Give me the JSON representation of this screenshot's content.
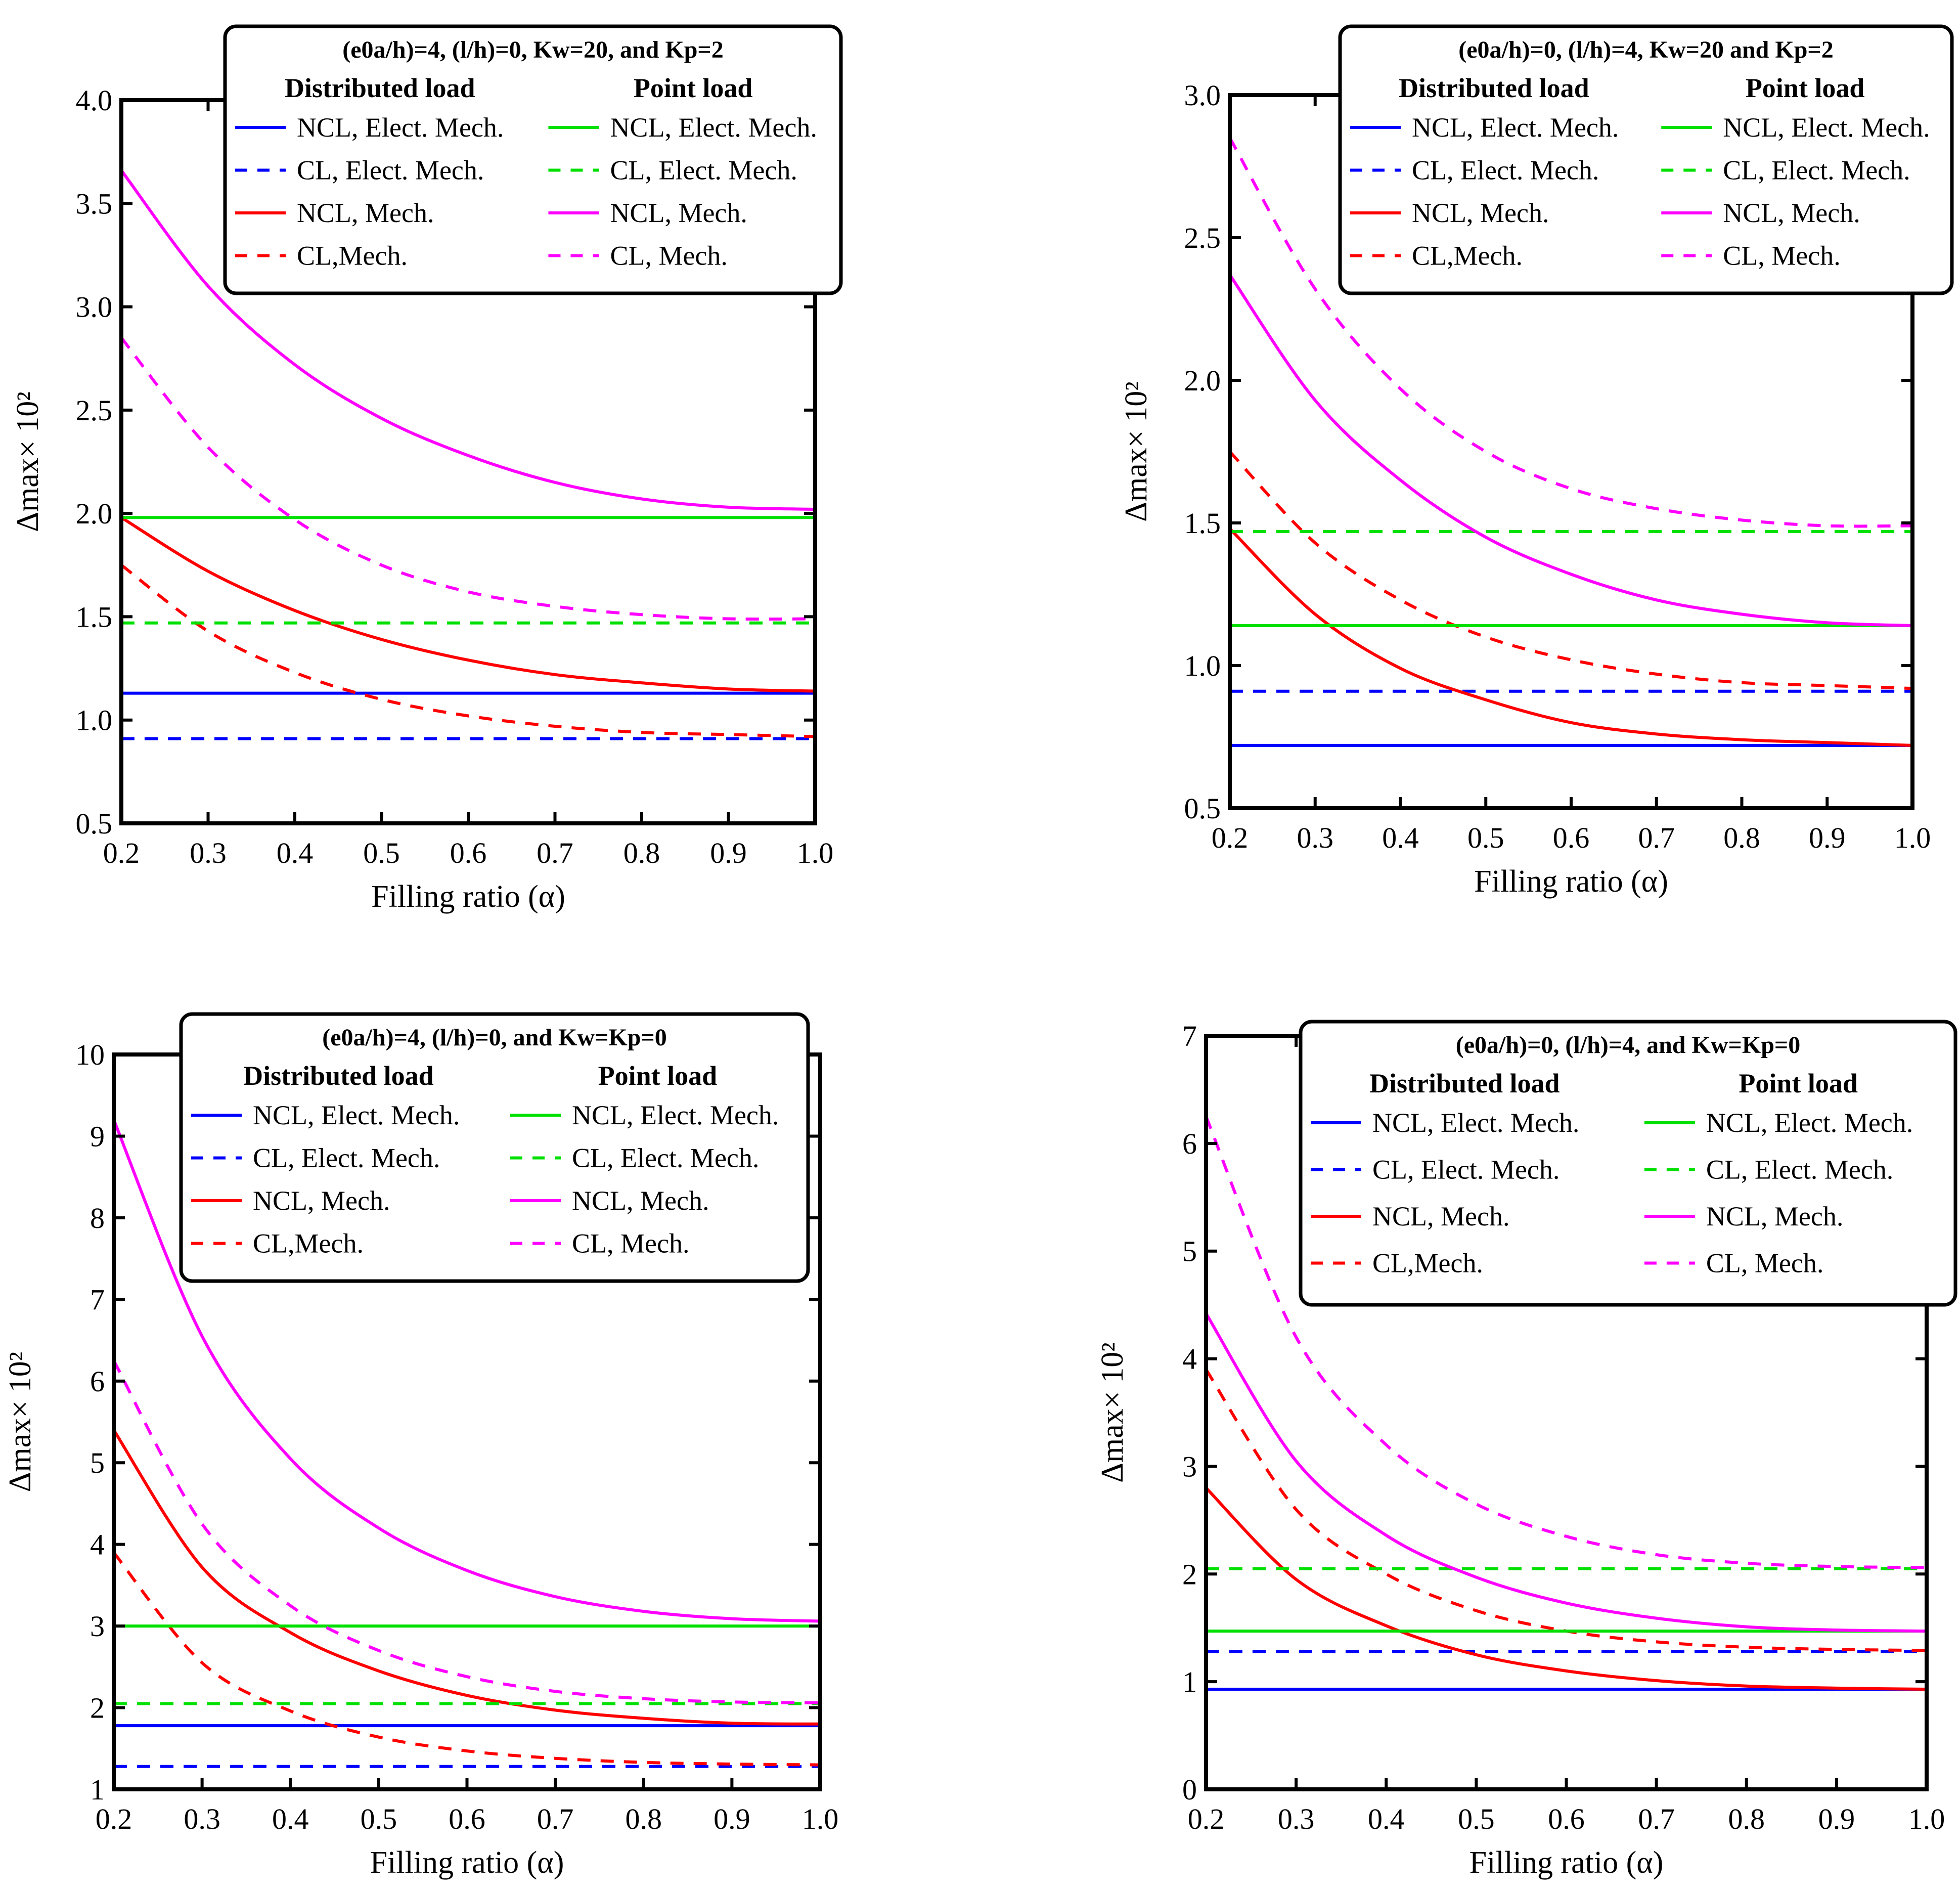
{
  "chart_data": [
    {
      "type": "line",
      "panel": "top-left",
      "legend_title": "(e0a/h)=4, (l/h)=0, Kw=20, and Kp=2",
      "xlabel": "Filling ratio (α)",
      "ylabel": "Δmax× 10²",
      "xlim": [
        0.2,
        1.0
      ],
      "ylim": [
        0.5,
        4.0
      ],
      "xticks": [
        "0.2",
        "0.3",
        "0.4",
        "0.5",
        "0.6",
        "0.7",
        "0.8",
        "0.9",
        "1.0"
      ],
      "yticks": [
        "0.5",
        "1.0",
        "1.5",
        "2.0",
        "2.5",
        "3.0",
        "3.5",
        "4.0"
      ],
      "legend_headers": [
        "Distributed load",
        "Point load"
      ],
      "x": [
        0.2,
        0.3,
        0.4,
        0.5,
        0.6,
        0.7,
        0.8,
        0.9,
        1.0
      ],
      "series": [
        {
          "name": "NCL, Elect. Mech.",
          "group": "Distributed load",
          "color": "#0000ff",
          "dash": "solid",
          "values": [
            1.13,
            1.13,
            1.13,
            1.13,
            1.13,
            1.13,
            1.13,
            1.13,
            1.13
          ]
        },
        {
          "name": "CL, Elect. Mech.",
          "group": "Distributed load",
          "color": "#0000ff",
          "dash": "dashed",
          "values": [
            0.91,
            0.91,
            0.91,
            0.91,
            0.91,
            0.91,
            0.91,
            0.91,
            0.91
          ]
        },
        {
          "name": "NCL, Mech.",
          "group": "Distributed load",
          "color": "#ff0000",
          "dash": "solid",
          "values": [
            1.98,
            1.72,
            1.53,
            1.39,
            1.29,
            1.22,
            1.18,
            1.15,
            1.14
          ]
        },
        {
          "name": "CL,Mech.",
          "group": "Distributed load",
          "color": "#ff0000",
          "dash": "dashed",
          "values": [
            1.75,
            1.43,
            1.23,
            1.1,
            1.02,
            0.97,
            0.94,
            0.93,
            0.92
          ]
        },
        {
          "name": "NCL, Elect. Mech.",
          "group": "Point load",
          "color": "#00e000",
          "dash": "solid",
          "values": [
            1.98,
            1.98,
            1.98,
            1.98,
            1.98,
            1.98,
            1.98,
            1.98,
            1.98
          ]
        },
        {
          "name": "CL, Elect. Mech.",
          "group": "Point load",
          "color": "#00e000",
          "dash": "dashed",
          "values": [
            1.47,
            1.47,
            1.47,
            1.47,
            1.47,
            1.47,
            1.47,
            1.47,
            1.47
          ]
        },
        {
          "name": "NCL, Mech.",
          "group": "Point load",
          "color": "#ff00ff",
          "dash": "solid",
          "values": [
            3.66,
            3.1,
            2.72,
            2.46,
            2.28,
            2.15,
            2.07,
            2.03,
            2.02
          ]
        },
        {
          "name": "CL, Mech.",
          "group": "Point load",
          "color": "#ff00ff",
          "dash": "dashed",
          "values": [
            2.85,
            2.32,
            1.97,
            1.75,
            1.62,
            1.55,
            1.51,
            1.49,
            1.49
          ]
        }
      ]
    },
    {
      "type": "line",
      "panel": "top-right",
      "legend_title": "(e0a/h)=0, (l/h)=4, Kw=20 and Kp=2",
      "xlabel": "Filling ratio (α)",
      "ylabel": "Δmax× 10²",
      "xlim": [
        0.2,
        1.0
      ],
      "ylim": [
        0.5,
        3.0
      ],
      "xticks": [
        "0.2",
        "0.3",
        "0.4",
        "0.5",
        "0.6",
        "0.7",
        "0.8",
        "0.9",
        "1.0"
      ],
      "yticks": [
        "0.5",
        "1.0",
        "1.5",
        "2.0",
        "2.5",
        "3.0"
      ],
      "legend_headers": [
        "Distributed load",
        "Point load"
      ],
      "x": [
        0.2,
        0.3,
        0.4,
        0.5,
        0.6,
        0.7,
        0.8,
        0.9,
        1.0
      ],
      "series": [
        {
          "name": "NCL, Elect. Mech.",
          "group": "Distributed load",
          "color": "#0000ff",
          "dash": "solid",
          "values": [
            0.72,
            0.72,
            0.72,
            0.72,
            0.72,
            0.72,
            0.72,
            0.72,
            0.72
          ]
        },
        {
          "name": "CL, Elect. Mech.",
          "group": "Distributed load",
          "color": "#0000ff",
          "dash": "dashed",
          "values": [
            0.91,
            0.91,
            0.91,
            0.91,
            0.91,
            0.91,
            0.91,
            0.91,
            0.91
          ]
        },
        {
          "name": "NCL, Mech.",
          "group": "Distributed load",
          "color": "#ff0000",
          "dash": "solid",
          "values": [
            1.48,
            1.18,
            0.99,
            0.88,
            0.8,
            0.76,
            0.74,
            0.73,
            0.72
          ]
        },
        {
          "name": "CL,Mech.",
          "group": "Distributed load",
          "color": "#ff0000",
          "dash": "dashed",
          "values": [
            1.75,
            1.43,
            1.23,
            1.1,
            1.02,
            0.97,
            0.94,
            0.93,
            0.92
          ]
        },
        {
          "name": "NCL, Elect. Mech.",
          "group": "Point load",
          "color": "#00e000",
          "dash": "solid",
          "values": [
            1.14,
            1.14,
            1.14,
            1.14,
            1.14,
            1.14,
            1.14,
            1.14,
            1.14
          ]
        },
        {
          "name": "CL, Elect. Mech.",
          "group": "Point load",
          "color": "#00e000",
          "dash": "dashed",
          "values": [
            1.47,
            1.47,
            1.47,
            1.47,
            1.47,
            1.47,
            1.47,
            1.47,
            1.47
          ]
        },
        {
          "name": "NCL, Mech.",
          "group": "Point load",
          "color": "#ff00ff",
          "dash": "solid",
          "values": [
            2.37,
            1.93,
            1.65,
            1.45,
            1.32,
            1.23,
            1.18,
            1.15,
            1.14
          ]
        },
        {
          "name": "CL, Mech.",
          "group": "Point load",
          "color": "#ff00ff",
          "dash": "dashed",
          "values": [
            2.85,
            2.32,
            1.97,
            1.75,
            1.62,
            1.55,
            1.51,
            1.49,
            1.49
          ]
        }
      ]
    },
    {
      "type": "line",
      "panel": "bottom-left",
      "legend_title": "(e0a/h)=4,  (l/h)=0, and Kw=Kp=0",
      "xlabel": "Filling ratio (α)",
      "ylabel": "Δmax× 10²",
      "xlim": [
        0.2,
        1.0
      ],
      "ylim": [
        1,
        10
      ],
      "xticks": [
        "0.2",
        "0.3",
        "0.4",
        "0.5",
        "0.6",
        "0.7",
        "0.8",
        "0.9",
        "1.0"
      ],
      "yticks": [
        "1",
        "2",
        "3",
        "4",
        "5",
        "6",
        "7",
        "8",
        "9",
        "10"
      ],
      "legend_headers": [
        "Distributed load",
        "Point load"
      ],
      "x": [
        0.2,
        0.3,
        0.4,
        0.5,
        0.6,
        0.7,
        0.8,
        0.9,
        1.0
      ],
      "series": [
        {
          "name": "NCL, Elect. Mech.",
          "group": "Distributed load",
          "color": "#0000ff",
          "dash": "solid",
          "values": [
            1.78,
            1.78,
            1.78,
            1.78,
            1.78,
            1.78,
            1.78,
            1.78,
            1.78
          ]
        },
        {
          "name": "CL, Elect. Mech.",
          "group": "Distributed load",
          "color": "#0000ff",
          "dash": "dashed",
          "values": [
            1.28,
            1.28,
            1.28,
            1.28,
            1.28,
            1.28,
            1.28,
            1.28,
            1.28
          ]
        },
        {
          "name": "NCL, Mech.",
          "group": "Distributed load",
          "color": "#ff0000",
          "dash": "solid",
          "values": [
            5.4,
            3.72,
            2.92,
            2.45,
            2.15,
            1.97,
            1.87,
            1.81,
            1.8
          ]
        },
        {
          "name": "CL,Mech.",
          "group": "Distributed load",
          "color": "#ff0000",
          "dash": "dashed",
          "values": [
            3.9,
            2.55,
            1.96,
            1.64,
            1.47,
            1.38,
            1.33,
            1.31,
            1.3
          ]
        },
        {
          "name": "NCL, Elect. Mech.",
          "group": "Point load",
          "color": "#00e000",
          "dash": "solid",
          "values": [
            3.0,
            3.0,
            3.0,
            3.0,
            3.0,
            3.0,
            3.0,
            3.0,
            3.0
          ]
        },
        {
          "name": "CL, Elect. Mech.",
          "group": "Point load",
          "color": "#00e000",
          "dash": "dashed",
          "values": [
            2.05,
            2.05,
            2.05,
            2.05,
            2.05,
            2.05,
            2.05,
            2.05,
            2.05
          ]
        },
        {
          "name": "NCL, Mech.",
          "group": "Point load",
          "color": "#ff00ff",
          "dash": "solid",
          "values": [
            9.2,
            6.55,
            5.05,
            4.2,
            3.68,
            3.36,
            3.18,
            3.09,
            3.06
          ]
        },
        {
          "name": "CL, Mech.",
          "group": "Point load",
          "color": "#ff00ff",
          "dash": "dashed",
          "values": [
            6.25,
            4.25,
            3.25,
            2.7,
            2.38,
            2.2,
            2.11,
            2.07,
            2.06
          ]
        }
      ]
    },
    {
      "type": "line",
      "panel": "bottom-right",
      "legend_title": "(e0a/h)=0, (l/h)=4,  and Kw=Kp=0",
      "xlabel": "Filling ratio (α)",
      "ylabel": "Δmax× 10²",
      "xlim": [
        0.2,
        1.0
      ],
      "ylim": [
        0,
        7
      ],
      "xticks": [
        "0.2",
        "0.3",
        "0.4",
        "0.5",
        "0.6",
        "0.7",
        "0.8",
        "0.9",
        "1.0"
      ],
      "yticks": [
        "0",
        "1",
        "2",
        "3",
        "4",
        "5",
        "6",
        "7"
      ],
      "legend_headers": [
        "Distributed load",
        "Point load"
      ],
      "x": [
        0.2,
        0.3,
        0.4,
        0.5,
        0.6,
        0.7,
        0.8,
        0.9,
        1.0
      ],
      "series": [
        {
          "name": "NCL, Elect. Mech.",
          "group": "Distributed load",
          "color": "#0000ff",
          "dash": "solid",
          "values": [
            0.93,
            0.93,
            0.93,
            0.93,
            0.93,
            0.93,
            0.93,
            0.93,
            0.93
          ]
        },
        {
          "name": "CL, Elect. Mech.",
          "group": "Distributed load",
          "color": "#0000ff",
          "dash": "dashed",
          "values": [
            1.28,
            1.28,
            1.28,
            1.28,
            1.28,
            1.28,
            1.28,
            1.28,
            1.28
          ]
        },
        {
          "name": "NCL, Mech.",
          "group": "Distributed load",
          "color": "#ff0000",
          "dash": "solid",
          "values": [
            2.8,
            1.95,
            1.52,
            1.25,
            1.1,
            1.01,
            0.96,
            0.94,
            0.93
          ]
        },
        {
          "name": "CL,Mech.",
          "group": "Distributed load",
          "color": "#ff0000",
          "dash": "dashed",
          "values": [
            3.9,
            2.6,
            2.0,
            1.66,
            1.47,
            1.37,
            1.32,
            1.3,
            1.29
          ]
        },
        {
          "name": "NCL, Elect. Mech.",
          "group": "Point load",
          "color": "#00e000",
          "dash": "solid",
          "values": [
            1.47,
            1.47,
            1.47,
            1.47,
            1.47,
            1.47,
            1.47,
            1.47,
            1.47
          ]
        },
        {
          "name": "CL, Elect. Mech.",
          "group": "Point load",
          "color": "#00e000",
          "dash": "dashed",
          "values": [
            2.05,
            2.05,
            2.05,
            2.05,
            2.05,
            2.05,
            2.05,
            2.05,
            2.05
          ]
        },
        {
          "name": "NCL, Mech.",
          "group": "Point load",
          "color": "#ff00ff",
          "dash": "solid",
          "values": [
            4.42,
            3.05,
            2.36,
            1.97,
            1.73,
            1.59,
            1.51,
            1.48,
            1.47
          ]
        },
        {
          "name": "CL, Mech.",
          "group": "Point load",
          "color": "#ff00ff",
          "dash": "dashed",
          "values": [
            6.25,
            4.2,
            3.2,
            2.65,
            2.35,
            2.18,
            2.1,
            2.07,
            2.06
          ]
        }
      ]
    }
  ]
}
